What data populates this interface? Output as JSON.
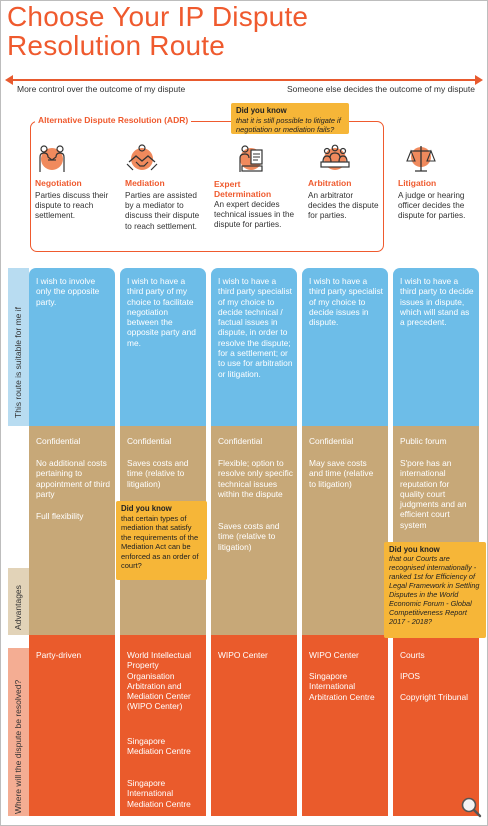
{
  "title": {
    "line1": "Choose Your IP Dispute",
    "line2": "Resolution Route"
  },
  "spectrum": {
    "left_label": "More control over the outcome of my dispute",
    "right_label": "Someone else decides the outcome of my dispute"
  },
  "adr": {
    "label": "Alternative Dispute Resolution (ADR)"
  },
  "did_you_know_top": {
    "heading": "Did you know",
    "text": "that it is still possible to litigate if negotiation or mediation fails?"
  },
  "did_you_know_mediation": {
    "heading": "Did you know",
    "text": "that certain types of mediation that satisfy the requirements of the Mediation Act can be enforced as an order of court?"
  },
  "did_you_know_courts": {
    "heading": "Did you know",
    "text": "that our Courts are recognised internationally - ranked 1st for Efficiency of Legal Framework in Settling Disputes in the World Economic Forum - Global Competitiveness Report 2017 - 2018?"
  },
  "routes": [
    {
      "icon": "handshake-people-icon",
      "name": "Negotiation",
      "description": "Parties discuss their dispute to reach settlement."
    },
    {
      "icon": "mediator-handshake-icon",
      "name": "Mediation",
      "description": "Parties are assisted by a mediator to discuss their dispute to reach settlement."
    },
    {
      "icon": "expert-document-icon",
      "name": "Expert Determination",
      "description": "An expert decides technical issues in the dispute for parties."
    },
    {
      "icon": "arbitration-panel-icon",
      "name": "Arbitration",
      "description": "An arbitrator decides the dispute for parties."
    },
    {
      "icon": "scales-of-justice-icon",
      "name": "Litigation",
      "description": "A judge or hearing officer decides the dispute for parties."
    }
  ],
  "row_labels": {
    "suitable": "This route is suitable for me if",
    "advantages": "Advantages",
    "where": "Where will the dispute be resolved?"
  },
  "suitable": [
    "I wish to involve only the opposite party.",
    "I wish to have a third party of my choice to facilitate negotiation between the opposite party and me.",
    "I wish to have a third party specialist of my choice to decide technical / factual issues in dispute, in order to resolve the dispute; for a settlement; or to use for arbitration or litigation.",
    "I wish to have a third party specialist of my choice to decide issues in dispute.",
    "I wish to have a third party to decide issues in dispute, which will stand as a precedent."
  ],
  "advantages": [
    [
      "Confidential",
      "No additional costs pertaining to appointment of third party",
      "Full flexibility"
    ],
    [
      "Confidential",
      "Saves costs and time (relative to litigation)"
    ],
    [
      "Confidential",
      "Flexible; option to resolve only specific technical issues within the dispute",
      "Saves costs and time (relative to litigation)"
    ],
    [
      "Confidential",
      "May save costs and time (relative to litigation)"
    ],
    [
      "Public forum",
      "S'pore has an international reputation for quality court judgments and an efficient court system"
    ]
  ],
  "venues": [
    [
      "Party-driven"
    ],
    [
      "World Intellectual Property Organisation Arbitration and Mediation Center (WIPO Center)",
      "Singapore Mediation Centre",
      "Singapore International Mediation Centre"
    ],
    [
      "WIPO Center"
    ],
    [
      "WIPO Center",
      "Singapore International Arbitration Centre"
    ],
    [
      "Courts",
      "IPOS",
      "Copyright Tribunal"
    ]
  ],
  "colors": {
    "accent": "#ef5a2e",
    "blue": "#6dbde8",
    "tan": "#c7a878",
    "orange": "#ea5b2c",
    "callout": "#f6b638"
  }
}
